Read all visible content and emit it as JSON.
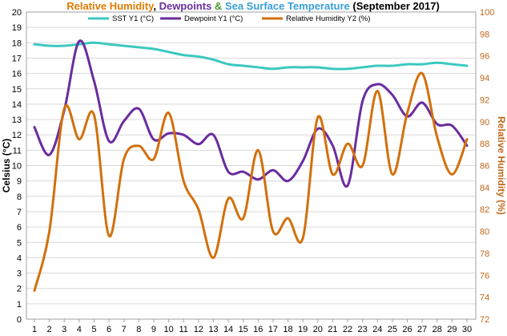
{
  "chart_data": {
    "type": "line",
    "title_parts": [
      {
        "text": "Relative Humidity",
        "color": "#e07b00"
      },
      {
        "text": ", ",
        "color": "#000000"
      },
      {
        "text": "Dewpoints",
        "color": "#6b2fa0"
      },
      {
        "text": " & ",
        "color": "#4a9a2a"
      },
      {
        "text": "Sea Surface Temperature",
        "color": "#3aa0d8"
      },
      {
        "text": " (September 2017)",
        "color": "#000000"
      }
    ],
    "ylabel": "Celsius (°C)",
    "y2label": "Relative Humidity (%)",
    "x": [
      1,
      2,
      3,
      4,
      5,
      6,
      7,
      8,
      9,
      10,
      11,
      12,
      13,
      14,
      15,
      16,
      17,
      18,
      19,
      20,
      21,
      22,
      23,
      24,
      25,
      26,
      27,
      28,
      29,
      30
    ],
    "ylim": [
      0,
      20
    ],
    "y2lim": [
      72,
      100
    ],
    "yticks": [
      "0",
      "1",
      "2",
      "3",
      "4",
      "5",
      "6",
      "7",
      "8",
      "9",
      "10",
      "11",
      "12",
      "13",
      "14",
      "15",
      "16",
      "17",
      "18",
      "19",
      "20"
    ],
    "y2ticks": [
      "72",
      "74",
      "76",
      "78",
      "80",
      "82",
      "84",
      "86",
      "88",
      "90",
      "92",
      "94",
      "96",
      "98",
      "100"
    ],
    "grid": true,
    "legend_position": "top",
    "series": [
      {
        "name": "SST Y1 (°C)",
        "axis": "left",
        "color": "#3cc8c0",
        "values": [
          17.9,
          17.8,
          17.8,
          17.9,
          18.0,
          17.9,
          17.8,
          17.7,
          17.6,
          17.4,
          17.2,
          17.1,
          16.9,
          16.6,
          16.5,
          16.4,
          16.3,
          16.4,
          16.4,
          16.4,
          16.3,
          16.3,
          16.4,
          16.5,
          16.5,
          16.6,
          16.6,
          16.7,
          16.6,
          16.5
        ]
      },
      {
        "name": "Dewpoint Y1 (°C)",
        "axis": "left",
        "color": "#6a2c9e",
        "values": [
          12.5,
          10.7,
          13.6,
          18.1,
          15.5,
          11.6,
          12.9,
          13.7,
          11.7,
          12.1,
          12.0,
          11.4,
          12.0,
          9.6,
          9.6,
          9.1,
          9.7,
          9.0,
          10.3,
          12.4,
          11.3,
          8.7,
          14.2,
          15.3,
          14.6,
          13.2,
          14.1,
          12.7,
          12.6,
          11.3
        ]
      },
      {
        "name": "Relative Humidity Y2 (%)",
        "axis": "right",
        "color": "#d2700c",
        "values": [
          74.6,
          80.0,
          91.2,
          88.4,
          90.6,
          79.6,
          86.6,
          87.8,
          86.6,
          90.8,
          84.6,
          82.0,
          77.6,
          83.0,
          81.2,
          87.4,
          80.0,
          81.2,
          79.4,
          90.4,
          85.2,
          88.0,
          86.0,
          92.8,
          85.2,
          90.8,
          94.4,
          88.6,
          85.2,
          88.4
        ]
      }
    ]
  }
}
